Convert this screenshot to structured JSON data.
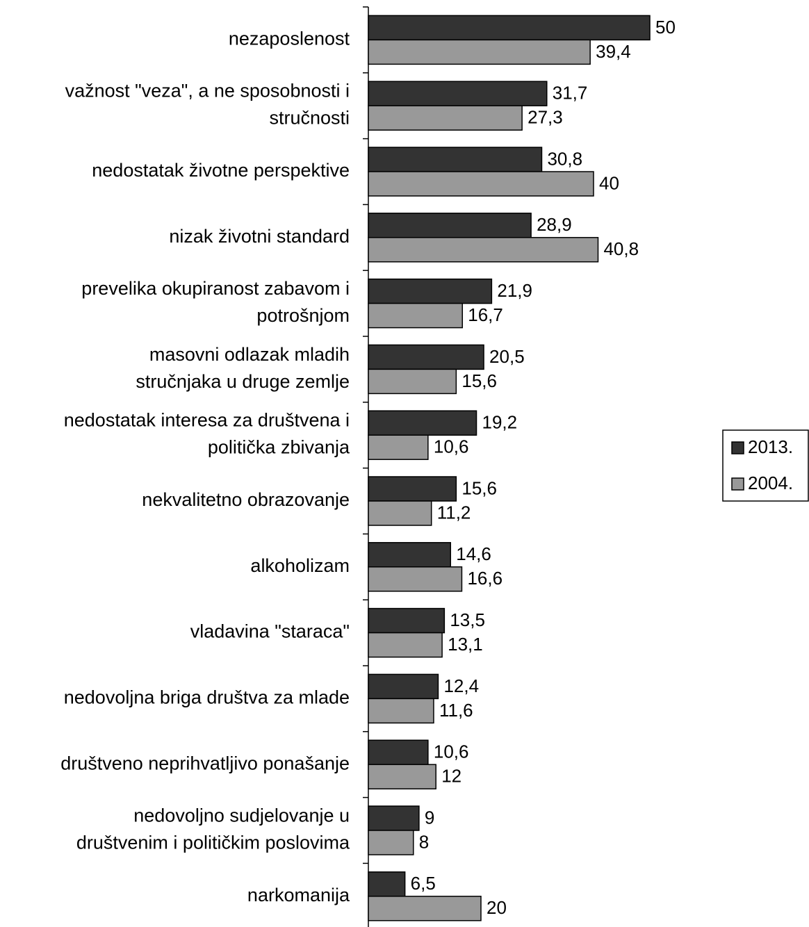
{
  "chart_data": {
    "type": "bar",
    "orientation": "horizontal",
    "categories": [
      "nezaposlenost",
      "važnost \"veza\", a ne sposobnosti i\nstručnosti",
      "nedostatak životne perspektive",
      "nizak životni standard",
      "prevelika okupiranost zabavom  i\npotrošnjom",
      "masovni odlazak mladih\nstručnjaka u druge zemlje",
      "nedostatak interesa za društvena i\npolitička zbivanja",
      "nekvalitetno obrazovanje",
      "alkoholizam",
      "vladavina \"staraca\"",
      "nedovoljna briga društva za mlade",
      "društveno neprihvatljivo ponašanje",
      "nedovoljno sudjelovanje u\ndruštvenim i političkim poslovima",
      "narkomanija"
    ],
    "series": [
      {
        "name": "2013.",
        "color": "#333333",
        "values": [
          50,
          31.7,
          30.8,
          28.9,
          21.9,
          20.5,
          19.2,
          15.6,
          14.6,
          13.5,
          12.4,
          10.6,
          9,
          6.5
        ],
        "value_labels": [
          "50",
          "31,7",
          "30,8",
          "28,9",
          "21,9",
          "20,5",
          "19,2",
          "15,6",
          "14,6",
          "13,5",
          "12,4",
          "10,6",
          "9",
          "6,5"
        ]
      },
      {
        "name": "2004.",
        "color": "#999999",
        "values": [
          39.4,
          27.3,
          40,
          40.8,
          16.7,
          15.6,
          10.6,
          11.2,
          16.6,
          13.1,
          11.6,
          12,
          8,
          20
        ],
        "value_labels": [
          "39,4",
          "27,3",
          "40",
          "40,8",
          "16,7",
          "15,6",
          "10,6",
          "11,2",
          "16,6",
          "13,1",
          "11,6",
          "12",
          "8",
          "20"
        ]
      }
    ],
    "legend": "right"
  }
}
